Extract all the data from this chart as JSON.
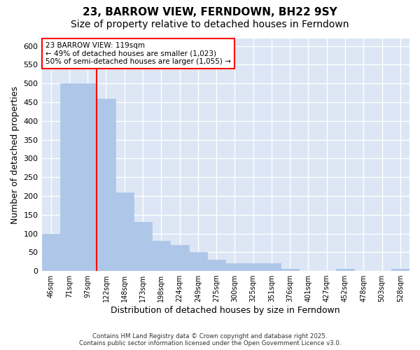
{
  "title": "23, BARROW VIEW, FERNDOWN, BH22 9SY",
  "subtitle": "Size of property relative to detached houses in Ferndown",
  "xlabel": "Distribution of detached houses by size in Ferndown",
  "ylabel": "Number of detached properties",
  "footer_line1": "Contains HM Land Registry data © Crown copyright and database right 2025.",
  "footer_line2": "Contains public sector information licensed under the Open Government Licence v3.0.",
  "bins": [
    "46sqm",
    "71sqm",
    "97sqm",
    "122sqm",
    "148sqm",
    "173sqm",
    "198sqm",
    "224sqm",
    "249sqm",
    "275sqm",
    "300sqm",
    "325sqm",
    "351sqm",
    "376sqm",
    "401sqm",
    "427sqm",
    "452sqm",
    "478sqm",
    "503sqm",
    "528sqm"
  ],
  "values": [
    100,
    500,
    500,
    460,
    210,
    130,
    80,
    70,
    50,
    30,
    20,
    20,
    20,
    5,
    0,
    0,
    5,
    0,
    0,
    5
  ],
  "bar_color": "#aec6e8",
  "bar_edge_color": "#aec6e8",
  "annotation_text": "23 BARROW VIEW: 119sqm\n← 49% of detached houses are smaller (1,023)\n50% of semi-detached houses are larger (1,055) →",
  "annotation_box_color": "white",
  "annotation_box_edge": "red",
  "vline_color": "red",
  "vline_x": 2.5,
  "ylim": [
    0,
    620
  ],
  "yticks": [
    0,
    50,
    100,
    150,
    200,
    250,
    300,
    350,
    400,
    450,
    500,
    550,
    600
  ],
  "plot_background": "#dce6f5",
  "grid_color": "white",
  "title_fontsize": 11,
  "subtitle_fontsize": 10,
  "xlabel_fontsize": 9,
  "ylabel_fontsize": 9
}
